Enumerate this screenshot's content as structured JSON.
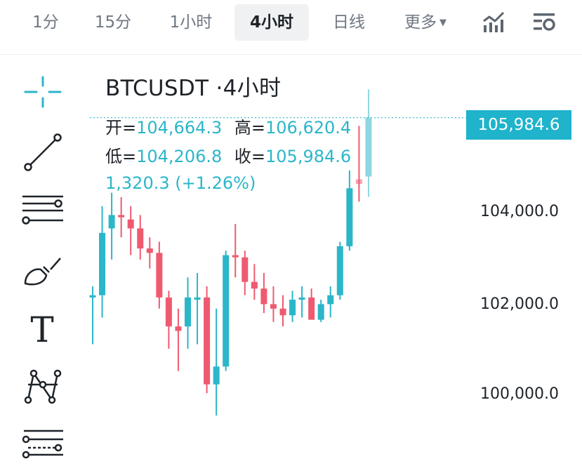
{
  "intervals": {
    "tabs": [
      "1分",
      "15分",
      "1小时",
      "4小时",
      "日线"
    ],
    "active": "4小时",
    "more_label": "更多"
  },
  "toolbar_icons": [
    "indicators-chart-icon",
    "chart-settings-icon"
  ],
  "drawing_tools": [
    "crosshair-icon",
    "trend-line-icon",
    "horizontal-lines-icon",
    "brush-icon",
    "text-tool-icon",
    "pattern-icon",
    "fibonacci-icon"
  ],
  "drawing_text_glyph": "T",
  "legend": {
    "symbol": "BTCUSDT",
    "interval": "·4小时",
    "open_label": "开=",
    "open": "104,664.3",
    "high_label": "高=",
    "high": "106,620.4",
    "low_label": "低=",
    "low": "104,206.8",
    "close_label": "收=",
    "close": "105,984.6",
    "change": "1,320.3 (+1.26%)"
  },
  "price_axis": {
    "labels": [
      "104,000.0",
      "102,000.0",
      "100,000.0"
    ],
    "last_price": "105,984.6"
  },
  "colors": {
    "up": "#2bb6c9",
    "down": "#ee5a6f",
    "last_price_tag": "#1fb3cc",
    "text": "#1e2329",
    "muted": "#6f7782"
  },
  "chart_data": {
    "type": "candlestick",
    "series": [
      {
        "o": 101950,
        "h": 102200,
        "l": 100900,
        "c": 102000
      },
      {
        "o": 102000,
        "h": 104000,
        "l": 101500,
        "c": 103400
      },
      {
        "o": 103500,
        "h": 104300,
        "l": 102800,
        "c": 103800
      },
      {
        "o": 103800,
        "h": 104200,
        "l": 103300,
        "c": 103750
      },
      {
        "o": 103700,
        "h": 104000,
        "l": 102900,
        "c": 103500
      },
      {
        "o": 103500,
        "h": 103800,
        "l": 102800,
        "c": 103050
      },
      {
        "o": 103050,
        "h": 103300,
        "l": 102600,
        "c": 102950
      },
      {
        "o": 102950,
        "h": 103200,
        "l": 101700,
        "c": 101950
      },
      {
        "o": 101950,
        "h": 102100,
        "l": 100800,
        "c": 101300
      },
      {
        "o": 101300,
        "h": 101700,
        "l": 100300,
        "c": 101200
      },
      {
        "o": 101300,
        "h": 102400,
        "l": 100800,
        "c": 101950
      },
      {
        "o": 101900,
        "h": 102500,
        "l": 100900,
        "c": 101950
      },
      {
        "o": 101950,
        "h": 102200,
        "l": 99800,
        "c": 100000
      },
      {
        "o": 100000,
        "h": 101700,
        "l": 99300,
        "c": 100400
      },
      {
        "o": 100400,
        "h": 103000,
        "l": 100300,
        "c": 102900
      },
      {
        "o": 102900,
        "h": 103600,
        "l": 102400,
        "c": 102850
      },
      {
        "o": 102850,
        "h": 103000,
        "l": 102000,
        "c": 102300
      },
      {
        "o": 102300,
        "h": 102700,
        "l": 101900,
        "c": 102150
      },
      {
        "o": 102150,
        "h": 102500,
        "l": 101600,
        "c": 101800
      },
      {
        "o": 101800,
        "h": 102200,
        "l": 101400,
        "c": 101700
      },
      {
        "o": 101700,
        "h": 102000,
        "l": 101300,
        "c": 101550
      },
      {
        "o": 101550,
        "h": 102100,
        "l": 101400,
        "c": 101900
      },
      {
        "o": 101900,
        "h": 102200,
        "l": 101500,
        "c": 101950
      },
      {
        "o": 101950,
        "h": 102150,
        "l": 101500,
        "c": 101450
      },
      {
        "o": 101450,
        "h": 101900,
        "l": 101400,
        "c": 101800
      },
      {
        "o": 101800,
        "h": 102200,
        "l": 101500,
        "c": 102000
      },
      {
        "o": 102000,
        "h": 103200,
        "l": 101900,
        "c": 103100
      },
      {
        "o": 103100,
        "h": 104800,
        "l": 103000,
        "c": 104400
      },
      {
        "o": 104600,
        "h": 105800,
        "l": 104100,
        "c": 104500
      },
      {
        "o": 104664.3,
        "h": 106620.4,
        "l": 104206.8,
        "c": 105984.6
      }
    ],
    "y_axis_ticks": [
      100000,
      102000,
      104000
    ],
    "last_price": 105984.6
  }
}
